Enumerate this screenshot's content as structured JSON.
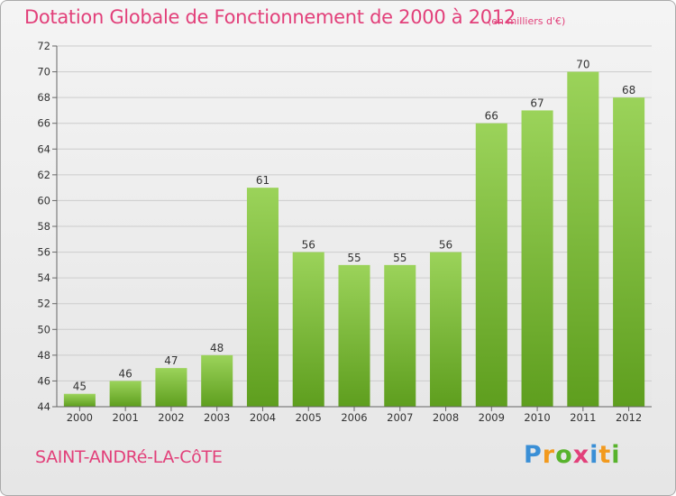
{
  "title": "Dotation Globale de Fonctionnement de 2000 à 2012",
  "unit": "(en milliers d'€)",
  "place": "SAINT-ANDRé-LA-CôTE",
  "logo": {
    "letters": [
      "P",
      "r",
      "o",
      "x",
      "i",
      "t",
      "i"
    ]
  },
  "colors": {
    "title": "#e2407a",
    "bar_top": "#9bd35a",
    "bar_bottom": "#5e9e1e",
    "grid": "#cccccc"
  },
  "chart_data": {
    "type": "bar",
    "title": "Dotation Globale de Fonctionnement de 2000 à 2012",
    "categories": [
      "2000",
      "2001",
      "2002",
      "2003",
      "2004",
      "2005",
      "2006",
      "2007",
      "2008",
      "2009",
      "2010",
      "2011",
      "2012"
    ],
    "values": [
      45,
      46,
      47,
      48,
      61,
      56,
      55,
      55,
      56,
      66,
      67,
      70,
      68
    ],
    "data_labels": [
      "45",
      "46",
      "47",
      "48",
      "61",
      "56",
      "55",
      "55",
      "56",
      "66",
      "67",
      "70",
      "68"
    ],
    "y_ticks": [
      "44",
      "46",
      "48",
      "50",
      "52",
      "54",
      "56",
      "58",
      "60",
      "62",
      "64",
      "66",
      "68",
      "70",
      "72"
    ],
    "xlabel": "",
    "ylabel": "",
    "ylim": [
      44,
      72
    ],
    "grid": true,
    "legend": "none"
  }
}
